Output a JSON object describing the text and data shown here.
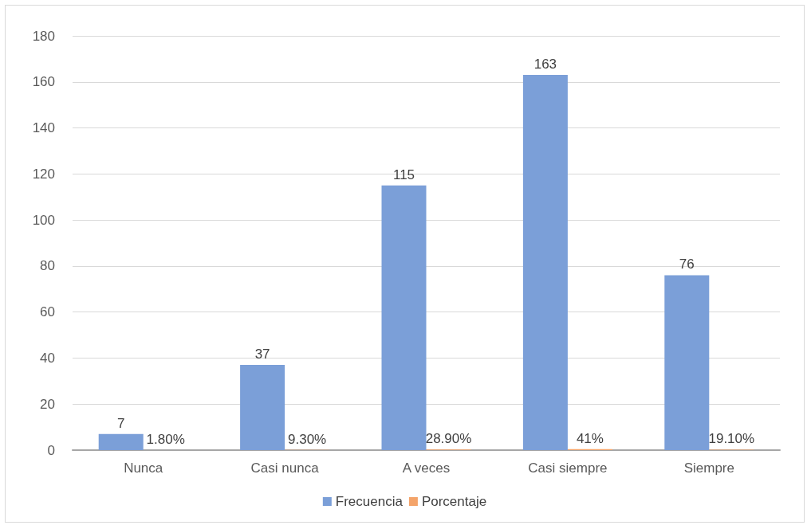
{
  "chart_data": {
    "type": "bar",
    "categories": [
      "Nunca",
      "Casi nunca",
      "A veces",
      "Casi siempre",
      "Siempre"
    ],
    "series": [
      {
        "name": "Frecuencia",
        "color": "#7b9fd8",
        "values": [
          7,
          37,
          115,
          163,
          76
        ],
        "value_labels": [
          "7",
          "37",
          "115",
          "163",
          "76"
        ]
      },
      {
        "name": "Porcentaje",
        "color": "#f4a46a",
        "values": [
          0.018,
          0.093,
          0.289,
          0.41,
          0.191
        ],
        "value_labels": [
          "1.80%",
          "9.30%",
          "28.90%",
          "41%",
          "19.10%"
        ]
      }
    ],
    "ylim": [
      0,
      180
    ],
    "yticks": [
      0,
      20,
      40,
      60,
      80,
      100,
      120,
      140,
      160,
      180
    ],
    "grid": "y",
    "legend": "bottom"
  }
}
